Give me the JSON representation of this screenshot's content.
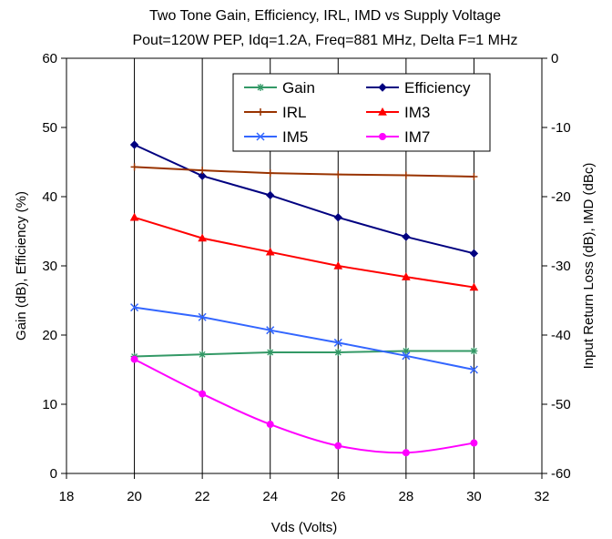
{
  "chart_data": {
    "type": "line",
    "title": "Two Tone Gain, Efficiency, IRL, IMD vs Supply Voltage",
    "subtitle": "Pout=120W PEP, Idq=1.2A, Freq=881 MHz, Delta F=1 MHz",
    "xlabel": "Vds (Volts)",
    "ylabel_left": "Gain (dB), Efficiency (%)",
    "ylabel_right": "Input Return Loss (dB), IMD (dBc)",
    "xlim": [
      18,
      32
    ],
    "ylim_left": [
      0,
      60
    ],
    "ylim_right": [
      -60,
      0
    ],
    "x_ticks": [
      "18",
      "20",
      "22",
      "24",
      "26",
      "28",
      "30",
      "32"
    ],
    "y_left_ticks": [
      "0",
      "10",
      "20",
      "30",
      "40",
      "50",
      "60"
    ],
    "y_right_ticks": [
      "-60",
      "-50",
      "-40",
      "-30",
      "-20",
      "-10",
      "0"
    ],
    "grid": "vertical",
    "legend_position": "top-center",
    "x": [
      20,
      22,
      24,
      26,
      28,
      30
    ],
    "series": [
      {
        "name": "Gain",
        "axis": "left",
        "color": "#339966",
        "marker": "star",
        "smooth": false,
        "values": [
          16.9,
          17.2,
          17.5,
          17.5,
          17.7,
          17.7
        ]
      },
      {
        "name": "Efficiency",
        "axis": "left",
        "color": "#000080",
        "marker": "diamond",
        "smooth": false,
        "values": [
          47.5,
          43.0,
          40.2,
          37.0,
          34.2,
          31.8
        ]
      },
      {
        "name": "IRL",
        "axis": "right",
        "color": "#993300",
        "marker": "plus",
        "smooth": false,
        "values": [
          -15.7,
          -16.2,
          -16.6,
          -16.8,
          -16.9,
          -17.1
        ]
      },
      {
        "name": "IM3",
        "axis": "right",
        "color": "#ff0000",
        "marker": "triangle",
        "smooth": false,
        "values": [
          -23.0,
          -26.0,
          -28.0,
          -30.0,
          -31.6,
          -33.1
        ]
      },
      {
        "name": "IM5",
        "axis": "right",
        "color": "#3366ff",
        "marker": "x",
        "smooth": false,
        "values": [
          -36.0,
          -37.4,
          -39.3,
          -41.1,
          -43.0,
          -45.0
        ]
      },
      {
        "name": "IM7",
        "axis": "right",
        "color": "#ff00ff",
        "marker": "circle",
        "smooth": true,
        "values": [
          -43.5,
          -48.5,
          -52.9,
          -56.0,
          -57.0,
          -55.6
        ]
      }
    ]
  }
}
